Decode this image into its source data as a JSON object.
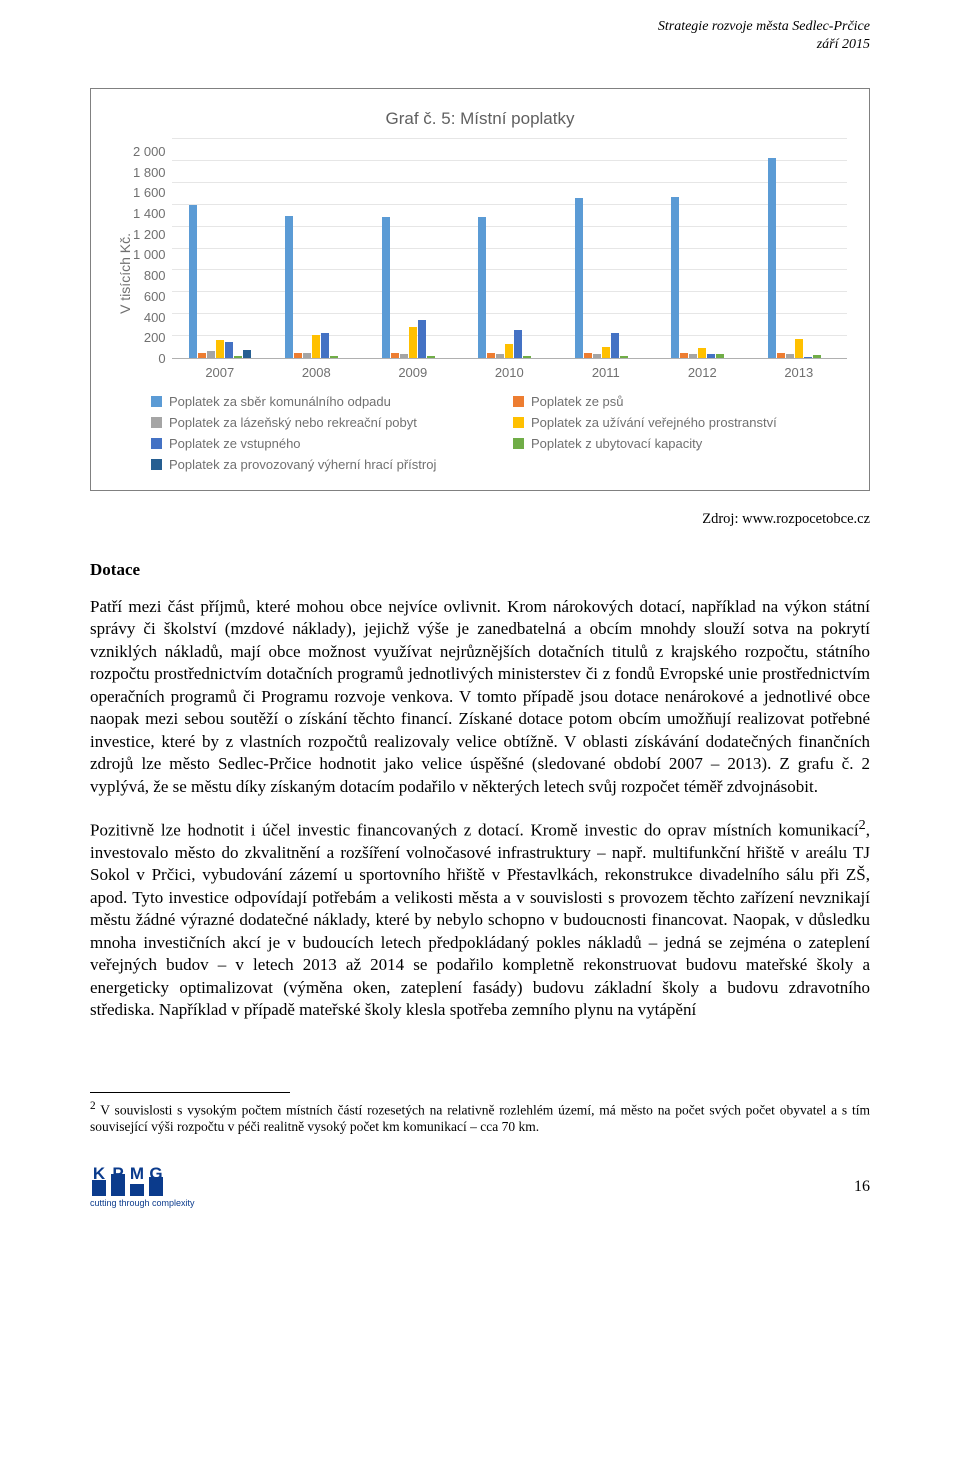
{
  "header": {
    "line1": "Strategie rozvoje města Sedlec-Prčice",
    "line2": "září 2015"
  },
  "chart": {
    "type": "bar",
    "title": "Graf č. 5: Místní poplatky",
    "y_label": "V tisících Kč.",
    "y_ticks": [
      "2 000",
      "1 800",
      "1 600",
      "1 400",
      "1 200",
      "1 000",
      "800",
      "600",
      "400",
      "200",
      "0"
    ],
    "ylim_max": 2000,
    "grid_color": "#e6e6e6",
    "axis_color": "#b0b0b0",
    "text_color": "#707070",
    "categories": [
      "2007",
      "2008",
      "2009",
      "2010",
      "2011",
      "2012",
      "2013"
    ],
    "series": [
      {
        "key": "s1",
        "name": "Poplatek za sběr komunálního odpadu",
        "color": "#5b9bd5"
      },
      {
        "key": "s2",
        "name": "Poplatek ze psů",
        "color": "#ed7d31"
      },
      {
        "key": "s3",
        "name": "Poplatek za lázeňský nebo rekreační pobyt",
        "color": "#a5a5a5"
      },
      {
        "key": "s4",
        "name": "Poplatek za užívání veřejného prostranství",
        "color": "#ffc000"
      },
      {
        "key": "s5",
        "name": "Poplatek ze vstupného",
        "color": "#4472c4"
      },
      {
        "key": "s6",
        "name": "Poplatek z ubytovací kapacity",
        "color": "#70ad47"
      },
      {
        "key": "s7",
        "name": "Poplatek za provozovaný výherní hrací přístroj",
        "color": "#255e91"
      }
    ],
    "data": {
      "2007": [
        1400,
        50,
        60,
        160,
        150,
        20,
        70
      ],
      "2008": [
        1300,
        50,
        50,
        210,
        230,
        20,
        0
      ],
      "2009": [
        1290,
        50,
        40,
        280,
        350,
        20,
        0
      ],
      "2010": [
        1290,
        50,
        40,
        130,
        260,
        20,
        0
      ],
      "2011": [
        1460,
        50,
        40,
        100,
        230,
        20,
        0
      ],
      "2012": [
        1470,
        50,
        40,
        90,
        40,
        40,
        0
      ],
      "2013": [
        1830,
        50,
        40,
        170,
        10,
        30,
        0
      ]
    }
  },
  "source": "Zdroj: www.rozpocetobce.cz",
  "heading": "Dotace",
  "para1": "Patří mezi část příjmů, které mohou obce nejvíce ovlivnit. Krom nárokových dotací, například na výkon státní správy či školství (mzdové náklady), jejichž výše je zanedbatelná a obcím mnohdy slouží sotva na pokrytí vzniklých nákladů, mají obce možnost využívat nejrůznějších dotačních titulů z krajského rozpočtu, státního rozpočtu prostřednictvím dotačních programů jednotlivých ministerstev či z fondů Evropské unie prostřednictvím operačních programů či Programu rozvoje venkova. V tomto případě jsou dotace nenárokové a jednotlivé obce naopak mezi sebou soutěží o získání těchto financí. Získané dotace potom obcím umožňují realizovat potřebné investice, které by z vlastních rozpočtů realizovaly velice obtížně. V oblasti získávání dodatečných finančních zdrojů lze město Sedlec-Prčice hodnotit jako velice úspěšné (sledované období 2007 – 2013). Z grafu č. 2 vyplývá, že se městu díky získaným dotacím podařilo v některých letech svůj rozpočet téměř zdvojnásobit.",
  "para2_pre": "Pozitivně lze hodnotit i účel investic financovaných z dotací. Kromě investic do oprav místních komunikací",
  "para2_sup": "2",
  "para2_post": ", investovalo město do zkvalitnění a rozšíření volnočasové infrastruktury – např. multifunkční hřiště v areálu TJ Sokol v Prčici, vybudování zázemí u sportovního hřiště v Přestavlkách, rekonstrukce divadelního sálu při ZŠ, apod. Tyto investice odpovídají potřebám a velikosti města a v souvislosti s provozem těchto zařízení nevznikají městu žádné výrazné dodatečné náklady, které by nebylo schopno v budoucnosti financovat. Naopak, v důsledku mnoha investičních akcí je v budoucích letech předpokládaný pokles nákladů – jedná se zejména o zateplení veřejných budov – v letech 2013 až 2014 se podařilo kompletně rekonstruovat budovu mateřské školy a energeticky optimalizovat (výměna oken, zateplení fasády) budovu základní školy a budovu zdravotního střediska. Například v případě mateřské školy klesla spotřeba zemního plynu na vytápění",
  "footnote_sup": "2",
  "footnote": " V souvislosti s vysokým počtem místních částí rozesetých na relativně rozlehlém území, má město na počet svých počet obyvatel a s tím související výši rozpočtu v péči realitně vysoký počet km komunikací – cca 70 km.",
  "logo_tag": "cutting through complexity",
  "page_number": "16"
}
